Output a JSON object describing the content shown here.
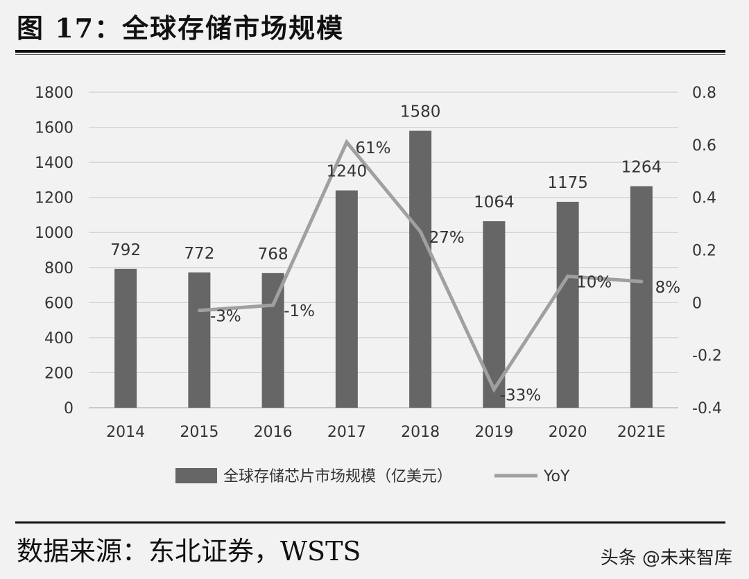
{
  "header": {
    "title": "图  17：全球存储市场规模"
  },
  "footer": {
    "source": "数据来源：东北证券，WSTS",
    "watermark": "头条 @未来智库"
  },
  "chart_data": {
    "type": "bar+line",
    "categories": [
      "2014",
      "2015",
      "2016",
      "2017",
      "2018",
      "2019",
      "2020",
      "2021E"
    ],
    "series": [
      {
        "name": "全球存储芯片市场规模（亿美元）",
        "type": "bar",
        "axis": "left",
        "color": "#666666",
        "values": [
          792,
          772,
          768,
          1240,
          1580,
          1064,
          1175,
          1264
        ],
        "labels": [
          "792",
          "772",
          "768",
          "1240",
          "1580",
          "1064",
          "1175",
          "1264"
        ]
      },
      {
        "name": "YoY",
        "type": "line",
        "axis": "right",
        "color": "#a0a0a0",
        "values": [
          null,
          -0.03,
          -0.01,
          0.61,
          0.27,
          -0.33,
          0.1,
          0.08
        ],
        "labels": [
          "",
          "-3%",
          "-1%",
          "61%",
          "27%",
          "-33%",
          "10%",
          "8%"
        ]
      }
    ],
    "y_left": {
      "min": 0,
      "max": 1800,
      "ticks": [
        "0",
        "200",
        "400",
        "600",
        "800",
        "1000",
        "1200",
        "1400",
        "1600",
        "1800"
      ]
    },
    "y_right": {
      "min": -0.4,
      "max": 0.8,
      "ticks": [
        "-0.4",
        "-0.2",
        "0",
        "0.2",
        "0.4",
        "0.6",
        "0.8"
      ]
    },
    "grid": true,
    "legend": "bottom"
  }
}
